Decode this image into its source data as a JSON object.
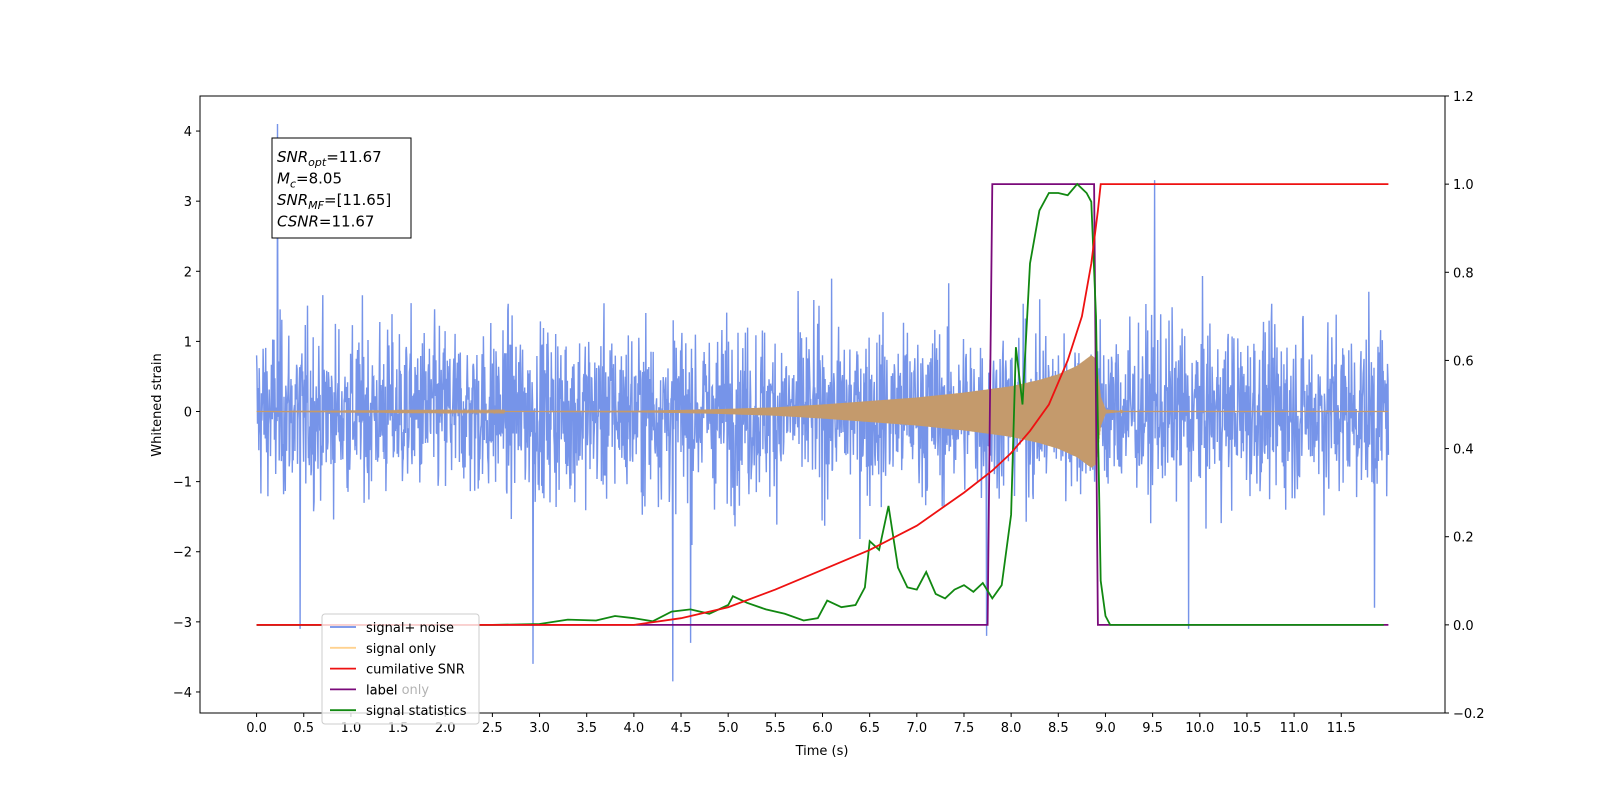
{
  "chart_data": {
    "type": "line",
    "xlabel": "Time (s)",
    "ylabel": "Whitened strain",
    "xlim": [
      -0.6,
      12.6
    ],
    "ylim": [
      -4.3,
      4.5
    ],
    "ylim_right": [
      -0.2,
      1.2
    ],
    "x_ticks": [
      "0.0",
      "0.5",
      "1.0",
      "1.5",
      "2.0",
      "2.5",
      "3.0",
      "3.5",
      "4.0",
      "4.5",
      "5.0",
      "5.5",
      "6.0",
      "6.5",
      "7.0",
      "7.5",
      "8.0",
      "8.5",
      "9.0",
      "9.5",
      "10.0",
      "10.5",
      "11.0",
      "11.5"
    ],
    "y_ticks": [
      "4",
      "3",
      "2",
      "1",
      "0",
      "−1",
      "−2",
      "−3",
      "−4"
    ],
    "y_ticks_right": [
      "1.2",
      "1.0",
      "0.8",
      "0.6",
      "0.4",
      "0.2",
      "0.0",
      "−0.2"
    ],
    "annotation": {
      "lines": [
        {
          "sym": "SNR",
          "sub": "opt",
          "value": "=11.67"
        },
        {
          "sym": "M",
          "sub": "c",
          "value": "=8.05"
        },
        {
          "sym": "SNR",
          "sub": "MF",
          "value": "=[11.65]"
        },
        {
          "sym": "CSNR",
          "sub": "",
          "value": "=11.67"
        }
      ]
    },
    "legend": {
      "placement": "lower-left",
      "items": [
        {
          "label": "signal+ noise",
          "color": "#6f8ee8"
        },
        {
          "label": "signal only",
          "color": "#ffc060"
        },
        {
          "label": "cumilative SNR",
          "color": "#ee1111"
        },
        {
          "label": "label",
          "color": "#7a0a7a"
        },
        {
          "label": "signal statistics",
          "color": "#118811"
        }
      ],
      "overlapped_text": "label only"
    },
    "series": [
      {
        "name": "signal+ noise",
        "axis": "left",
        "color": "#6f8ee8",
        "x_range": [
          0.0,
          12.0
        ],
        "noise_band_typical": [
          -2.0,
          2.0
        ],
        "extremes": [
          {
            "x": 0.22,
            "y": 4.1
          },
          {
            "x": 0.46,
            "y": -3.1
          },
          {
            "x": 2.93,
            "y": -3.6
          },
          {
            "x": 4.41,
            "y": -3.85
          },
          {
            "x": 4.6,
            "y": -3.3
          },
          {
            "x": 7.74,
            "y": -3.2
          },
          {
            "x": 9.52,
            "y": 3.3
          },
          {
            "x": 9.88,
            "y": -3.1
          },
          {
            "x": 11.85,
            "y": -2.8
          }
        ]
      },
      {
        "name": "signal only",
        "axis": "left",
        "color": "#c49a6c",
        "envelope": [
          [
            0.0,
            0.0
          ],
          [
            4.0,
            0.01
          ],
          [
            4.8,
            0.03
          ],
          [
            5.5,
            0.06
          ],
          [
            6.0,
            0.1
          ],
          [
            6.5,
            0.15
          ],
          [
            7.0,
            0.2
          ],
          [
            7.5,
            0.27
          ],
          [
            8.0,
            0.36
          ],
          [
            8.3,
            0.45
          ],
          [
            8.5,
            0.53
          ],
          [
            8.7,
            0.65
          ],
          [
            8.85,
            0.8
          ],
          [
            8.9,
            0.75
          ],
          [
            8.95,
            0.2
          ],
          [
            9.0,
            0.03
          ],
          [
            9.2,
            0.0
          ],
          [
            12.0,
            0.0
          ]
        ]
      },
      {
        "name": "cumilative SNR",
        "axis": "right",
        "color": "#ee1111",
        "points": [
          [
            0.0,
            0.0
          ],
          [
            4.0,
            0.0
          ],
          [
            4.5,
            0.015
          ],
          [
            5.0,
            0.04
          ],
          [
            5.5,
            0.08
          ],
          [
            6.0,
            0.125
          ],
          [
            6.5,
            0.17
          ],
          [
            7.0,
            0.225
          ],
          [
            7.5,
            0.3
          ],
          [
            7.8,
            0.35
          ],
          [
            8.0,
            0.39
          ],
          [
            8.2,
            0.44
          ],
          [
            8.4,
            0.5
          ],
          [
            8.6,
            0.6
          ],
          [
            8.75,
            0.7
          ],
          [
            8.85,
            0.82
          ],
          [
            8.92,
            0.94
          ],
          [
            8.95,
            1.0
          ],
          [
            12.0,
            1.0
          ]
        ]
      },
      {
        "name": "label",
        "axis": "right",
        "color": "#7a0a7a",
        "points": [
          [
            0.0,
            0.0
          ],
          [
            7.75,
            0.0
          ],
          [
            7.8,
            1.0
          ],
          [
            8.88,
            1.0
          ],
          [
            8.92,
            0.0
          ],
          [
            12.0,
            0.0
          ]
        ]
      },
      {
        "name": "signal statistics",
        "axis": "right",
        "color": "#118811",
        "points": [
          [
            0.0,
            0.0
          ],
          [
            2.5,
            0.0
          ],
          [
            3.0,
            0.002
          ],
          [
            3.3,
            0.012
          ],
          [
            3.6,
            0.01
          ],
          [
            3.8,
            0.02
          ],
          [
            4.0,
            0.015
          ],
          [
            4.2,
            0.008
          ],
          [
            4.4,
            0.03
          ],
          [
            4.6,
            0.035
          ],
          [
            4.8,
            0.025
          ],
          [
            5.0,
            0.045
          ],
          [
            5.05,
            0.065
          ],
          [
            5.2,
            0.05
          ],
          [
            5.4,
            0.035
          ],
          [
            5.6,
            0.025
          ],
          [
            5.8,
            0.01
          ],
          [
            5.95,
            0.015
          ],
          [
            6.05,
            0.055
          ],
          [
            6.2,
            0.04
          ],
          [
            6.35,
            0.045
          ],
          [
            6.45,
            0.085
          ],
          [
            6.5,
            0.19
          ],
          [
            6.6,
            0.17
          ],
          [
            6.7,
            0.27
          ],
          [
            6.8,
            0.13
          ],
          [
            6.9,
            0.085
          ],
          [
            7.0,
            0.08
          ],
          [
            7.1,
            0.12
          ],
          [
            7.2,
            0.07
          ],
          [
            7.3,
            0.06
          ],
          [
            7.4,
            0.08
          ],
          [
            7.5,
            0.09
          ],
          [
            7.6,
            0.075
          ],
          [
            7.7,
            0.095
          ],
          [
            7.8,
            0.06
          ],
          [
            7.9,
            0.09
          ],
          [
            8.0,
            0.25
          ],
          [
            8.05,
            0.63
          ],
          [
            8.12,
            0.5
          ],
          [
            8.2,
            0.82
          ],
          [
            8.3,
            0.94
          ],
          [
            8.4,
            0.98
          ],
          [
            8.5,
            0.98
          ],
          [
            8.6,
            0.975
          ],
          [
            8.7,
            1.0
          ],
          [
            8.8,
            0.98
          ],
          [
            8.85,
            0.96
          ],
          [
            8.9,
            0.7
          ],
          [
            8.95,
            0.1
          ],
          [
            9.0,
            0.02
          ],
          [
            9.05,
            0.0
          ],
          [
            11.95,
            0.0
          ]
        ]
      }
    ]
  }
}
